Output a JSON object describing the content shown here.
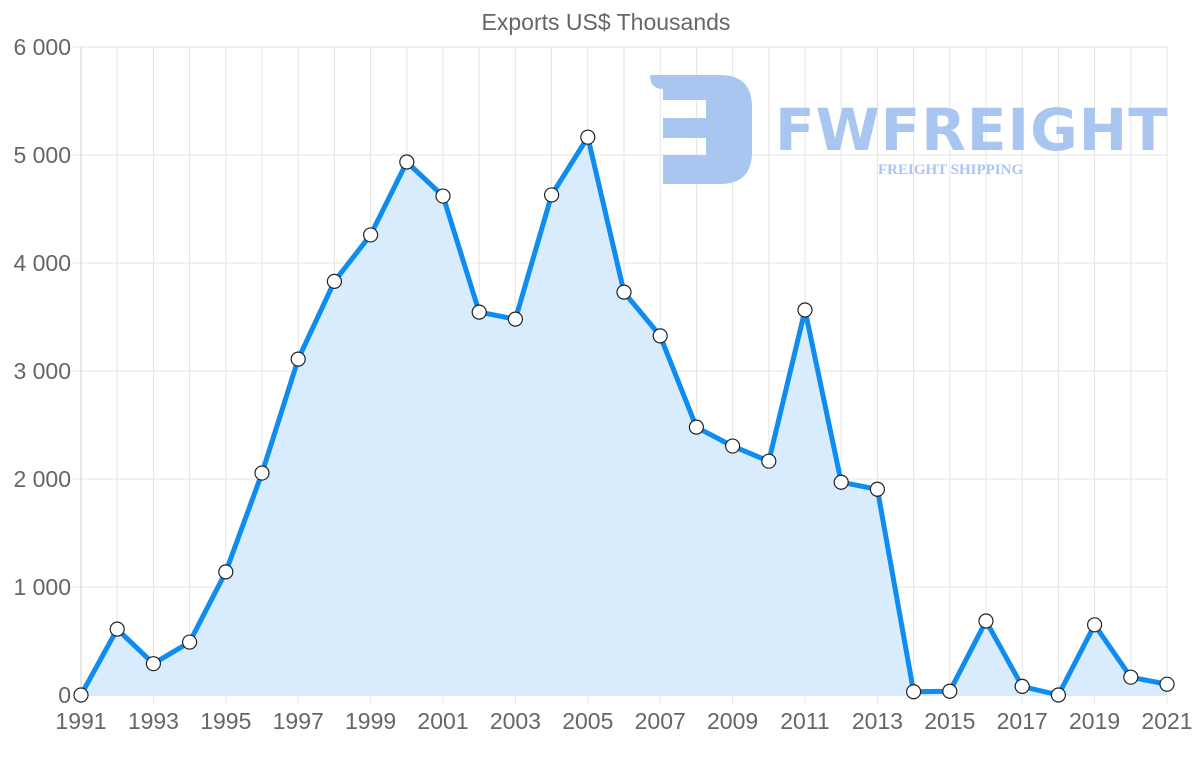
{
  "chart_data": {
    "type": "area",
    "title": "Exports US$ Thousands",
    "xlabel": "",
    "ylabel": "",
    "ylim": [
      0,
      6000
    ],
    "yticks": [
      0,
      1000,
      2000,
      3000,
      4000,
      5000,
      6000
    ],
    "ytick_labels": [
      "0",
      "1 000",
      "2 000",
      "3 000",
      "4 000",
      "5 000",
      "6 000"
    ],
    "xtick_labels": [
      "1991",
      "1993",
      "1995",
      "1997",
      "1999",
      "2001",
      "2003",
      "2005",
      "2007",
      "2009",
      "2011",
      "2013",
      "2015",
      "2017",
      "2019",
      "2021"
    ],
    "grid": true,
    "legend": "none",
    "x": [
      1991,
      1992,
      1993,
      1994,
      1995,
      1996,
      1997,
      1998,
      1999,
      2000,
      2001,
      2002,
      2003,
      2004,
      2005,
      2006,
      2007,
      2008,
      2009,
      2010,
      2011,
      2012,
      2013,
      2014,
      2015,
      2016,
      2017,
      2018,
      2019,
      2020,
      2021
    ],
    "series": [
      {
        "name": "Exports US$ Thousands",
        "values": [
          0,
          610,
          290,
          490,
          1140,
          2055,
          3110,
          3830,
          4260,
          4935,
          4620,
          3545,
          3480,
          4630,
          5165,
          3730,
          3325,
          2480,
          2305,
          2165,
          3565,
          1970,
          1905,
          30,
          35,
          685,
          80,
          0,
          650,
          165,
          100
        ],
        "line_color": "#0e8cf0",
        "fill_color": "#d7ebfd",
        "marker_fill": "#ffffff",
        "marker_stroke": "#222222"
      }
    ]
  },
  "watermark": {
    "brand": "FWFREIGHT",
    "tagline": "FREIGHT SHIPPING",
    "color": "#a9c6f0"
  }
}
